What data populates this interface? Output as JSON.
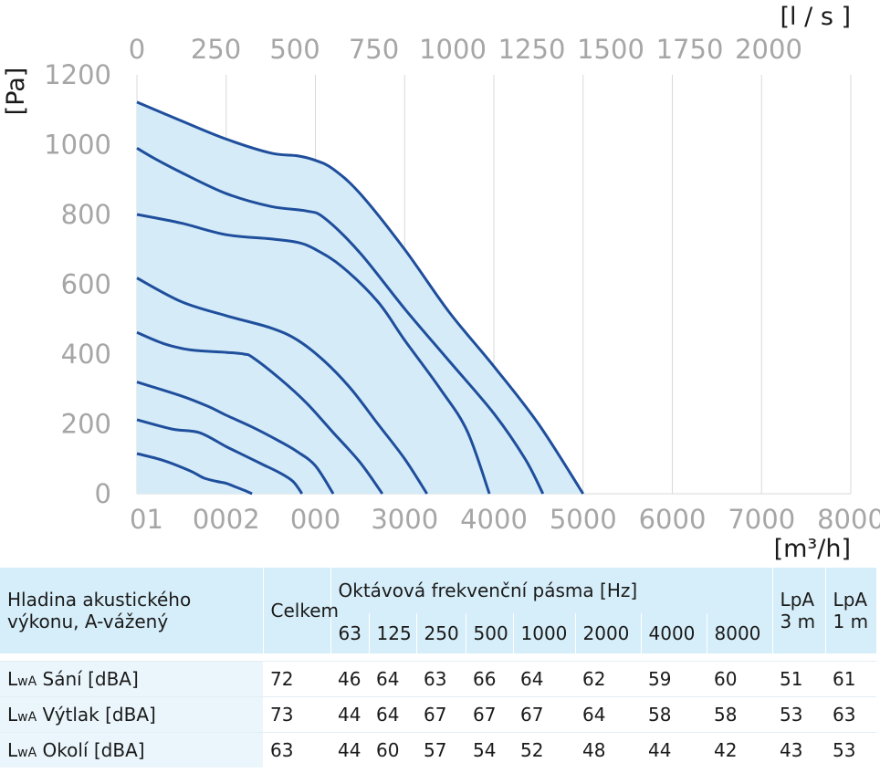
{
  "chart_data": {
    "type": "line",
    "x_label": "[m³/h]",
    "x_tick_labels": [
      "01",
      "0002",
      "000",
      "3000",
      "4000",
      "5000",
      "6000",
      "7000",
      "8000",
      "000"
    ],
    "x2_label": "[l / s ]",
    "x2_ticks": [
      0,
      250,
      500,
      750,
      1000,
      1250,
      1500,
      1750,
      2000
    ],
    "y_label": "[Pa]",
    "y_ticks": [
      0,
      200,
      400,
      600,
      800,
      1000,
      1200
    ],
    "xlim": [
      0,
      8000
    ],
    "ylim": [
      0,
      1200
    ],
    "grid": true,
    "fill_color": "#d5ecf8",
    "line_color": "#1f4e9c",
    "series": [
      {
        "points": [
          [
            0,
            1122
          ],
          [
            500,
            1068
          ],
          [
            1000,
            1016
          ],
          [
            1500,
            976
          ],
          [
            1800,
            968
          ],
          [
            2000,
            955
          ],
          [
            2200,
            930
          ],
          [
            2500,
            860
          ],
          [
            3000,
            700
          ],
          [
            3500,
            520
          ],
          [
            4000,
            365
          ],
          [
            4500,
            200
          ],
          [
            5000,
            0
          ]
        ]
      },
      {
        "points": [
          [
            0,
            990
          ],
          [
            200,
            960
          ],
          [
            500,
            920
          ],
          [
            1000,
            860
          ],
          [
            1500,
            823
          ],
          [
            1900,
            810
          ],
          [
            2100,
            790
          ],
          [
            2500,
            690
          ],
          [
            3000,
            530
          ],
          [
            3500,
            380
          ],
          [
            4000,
            230
          ],
          [
            4350,
            100
          ],
          [
            4550,
            0
          ]
        ]
      },
      {
        "points": [
          [
            0,
            800
          ],
          [
            500,
            775
          ],
          [
            1000,
            742
          ],
          [
            1500,
            730
          ],
          [
            1800,
            720
          ],
          [
            2000,
            700
          ],
          [
            2300,
            650
          ],
          [
            2700,
            550
          ],
          [
            3000,
            440
          ],
          [
            3400,
            300
          ],
          [
            3700,
            180
          ],
          [
            3950,
            0
          ]
        ]
      },
      {
        "points": [
          [
            0,
            618
          ],
          [
            500,
            550
          ],
          [
            1000,
            510
          ],
          [
            1500,
            475
          ],
          [
            1800,
            440
          ],
          [
            2100,
            380
          ],
          [
            2400,
            300
          ],
          [
            2700,
            200
          ],
          [
            3000,
            100
          ],
          [
            3250,
            0
          ]
        ]
      },
      {
        "points": [
          [
            0,
            462
          ],
          [
            300,
            430
          ],
          [
            600,
            412
          ],
          [
            1000,
            405
          ],
          [
            1200,
            400
          ],
          [
            1300,
            390
          ],
          [
            1600,
            330
          ],
          [
            1900,
            260
          ],
          [
            2200,
            175
          ],
          [
            2500,
            90
          ],
          [
            2750,
            0
          ]
        ]
      },
      {
        "points": [
          [
            0,
            320
          ],
          [
            500,
            280
          ],
          [
            800,
            250
          ],
          [
            1000,
            225
          ],
          [
            1300,
            190
          ],
          [
            1600,
            150
          ],
          [
            1800,
            120
          ],
          [
            2000,
            80
          ],
          [
            2200,
            0
          ]
        ]
      },
      {
        "points": [
          [
            0,
            212
          ],
          [
            400,
            185
          ],
          [
            700,
            175
          ],
          [
            1000,
            135
          ],
          [
            1200,
            110
          ],
          [
            1400,
            85
          ],
          [
            1600,
            60
          ],
          [
            1750,
            35
          ],
          [
            1850,
            0
          ]
        ]
      },
      {
        "points": [
          [
            0,
            115
          ],
          [
            300,
            95
          ],
          [
            600,
            65
          ],
          [
            750,
            45
          ],
          [
            900,
            35
          ],
          [
            1000,
            30
          ],
          [
            1100,
            20
          ],
          [
            1200,
            10
          ],
          [
            1290,
            0
          ]
        ]
      }
    ]
  },
  "table": {
    "header_label_line1": "Hladina akustického",
    "header_label_line2": "výkonu, A-vážený",
    "header_total": "Celkem",
    "header_octave": "Oktávová frekvenční pásma [Hz]",
    "bands": [
      "63",
      "125",
      "250",
      "500",
      "1000",
      "2000",
      "4000",
      "8000"
    ],
    "lpa3_line1": "LpA",
    "lpa3_line2": "3 m",
    "lpa1_line1": "LpA",
    "lpa1_line2": "1 m",
    "rows": [
      {
        "lw": "L",
        "sub": "wA",
        "label": " Sání [dBA]",
        "total": "72",
        "values": [
          "46",
          "64",
          "63",
          "66",
          "64",
          "62",
          "59",
          "60"
        ],
        "lpa3": "51",
        "lpa1": "61"
      },
      {
        "lw": "L",
        "sub": "wA",
        "label": " Výtlak [dBA]",
        "total": "73",
        "values": [
          "44",
          "64",
          "67",
          "67",
          "67",
          "64",
          "58",
          "58"
        ],
        "lpa3": "53",
        "lpa1": "63"
      },
      {
        "lw": "L",
        "sub": "wA",
        "label": " Okolí [dBA]",
        "total": "63",
        "values": [
          "44",
          "60",
          "57",
          "54",
          "52",
          "48",
          "44",
          "42"
        ],
        "lpa3": "43",
        "lpa1": "53"
      }
    ]
  }
}
